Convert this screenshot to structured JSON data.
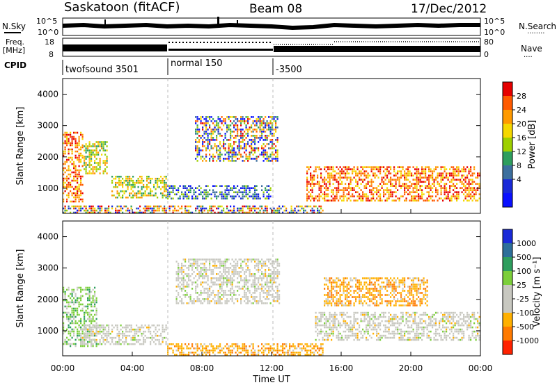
{
  "header": {
    "station": "Saskatoon (fitACF)",
    "beam": "Beam 08",
    "date": "17/Dec/2012"
  },
  "nsky_panel": {
    "label": "N.Sky",
    "ticks_left": [
      "10^5",
      "10^0"
    ],
    "ticks_right": [
      "10^5",
      "10^0"
    ],
    "right_label": "N.Search",
    "right_label_line": "........"
  },
  "freq_panel": {
    "label_line1": "Freq.",
    "label_line2": "[MHz]",
    "ticks_left": [
      "18",
      "8"
    ],
    "ticks_right": [
      "80",
      "0"
    ],
    "right_label": "Nave",
    "right_label_line": "...."
  },
  "cpid_panel": {
    "label": "CPID",
    "segments": [
      {
        "start_h": 0,
        "end_h": 6,
        "label": "twofsound 3501"
      },
      {
        "start_h": 6,
        "end_h": 12,
        "label": "normal 150"
      },
      {
        "start_h": 12,
        "end_h": 24,
        "label": "-3500"
      }
    ]
  },
  "time_axis": {
    "label": "Time UT",
    "ticks": [
      "00:00",
      "04:00",
      "08:00",
      "12:00",
      "16:00",
      "20:00",
      "00:00"
    ],
    "tick_hours": [
      0,
      4,
      8,
      12,
      16,
      20,
      24
    ]
  },
  "slant_axis": {
    "label": "Slant Range [km]",
    "ticks": [
      "1000",
      "2000",
      "3000",
      "4000"
    ],
    "tick_values": [
      1000,
      2000,
      3000,
      4000
    ],
    "range": [
      200,
      4500
    ]
  },
  "power_scale": {
    "label": "Power [dB]",
    "tick_labels": [
      "28",
      "24",
      "20",
      "16",
      "12",
      "8",
      "4"
    ],
    "colors": [
      "#e60000",
      "#ff5a00",
      "#ff9a00",
      "#f5d800",
      "#9ed000",
      "#2e9e5e",
      "#3c6f9e",
      "#1a2ad8",
      "#0a10ff"
    ]
  },
  "velocity_scale": {
    "label": "Velocity [m s⁻¹]",
    "tick_labels": [
      "1000",
      "500",
      "100",
      "25",
      "-25",
      "-100",
      "-500",
      "-1000"
    ],
    "colors": [
      "#1a2ad8",
      "#2d6f9a",
      "#2e9e5e",
      "#7ccf3a",
      "#c8c8c0",
      "#c8c8c0",
      "#ffb000",
      "#ff7a00",
      "#ff2200"
    ]
  },
  "chart_data": [
    {
      "type": "heatmap",
      "name": "Power",
      "x_range_hours": [
        0,
        24
      ],
      "y_range_km": [
        200,
        4500
      ],
      "regions": [
        {
          "h0": 0.0,
          "h1": 1.2,
          "r0": 600,
          "r1": 2800,
          "level": "high"
        },
        {
          "h0": 1.2,
          "h1": 2.6,
          "r0": 1500,
          "r1": 2500,
          "level": "mid"
        },
        {
          "h0": 2.8,
          "h1": 6.0,
          "r0": 700,
          "r1": 1400,
          "level": "mid"
        },
        {
          "h0": 6.0,
          "h1": 12.0,
          "r0": 700,
          "r1": 1100,
          "level": "low"
        },
        {
          "h0": 7.6,
          "h1": 12.3,
          "r0": 1900,
          "r1": 3300,
          "level": "mixed"
        },
        {
          "h0": 14.0,
          "h1": 24.0,
          "r0": 600,
          "r1": 1700,
          "level": "high"
        },
        {
          "h0": 0.0,
          "h1": 15.0,
          "r0": 250,
          "r1": 450,
          "level": "mixed"
        }
      ]
    },
    {
      "type": "heatmap",
      "name": "Velocity",
      "x_range_hours": [
        0,
        24
      ],
      "y_range_km": [
        200,
        4500
      ],
      "regions": [
        {
          "h0": 0.0,
          "h1": 2.0,
          "r0": 500,
          "r1": 2400,
          "class": "positive-small"
        },
        {
          "h0": 1.0,
          "h1": 6.0,
          "r0": 600,
          "r1": 1200,
          "class": "near-zero"
        },
        {
          "h0": 6.5,
          "h1": 12.5,
          "r0": 1900,
          "r1": 3300,
          "class": "near-zero"
        },
        {
          "h0": 6.0,
          "h1": 15.0,
          "r0": 250,
          "r1": 600,
          "class": "negative"
        },
        {
          "h0": 14.5,
          "h1": 24.0,
          "r0": 700,
          "r1": 1600,
          "class": "near-zero"
        },
        {
          "h0": 15.0,
          "h1": 21.0,
          "r0": 1800,
          "r1": 2700,
          "class": "negative-mid"
        }
      ]
    }
  ]
}
